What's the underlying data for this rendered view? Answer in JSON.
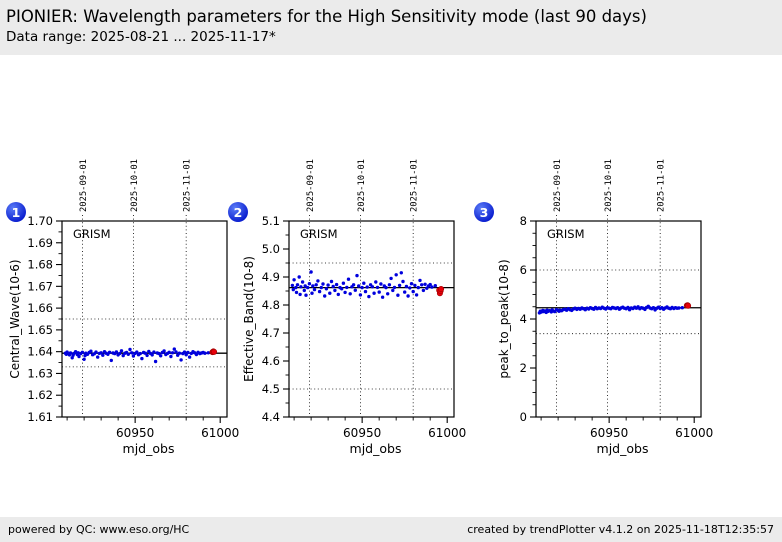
{
  "header": {
    "title": "PIONIER: Wavelength parameters for the High Sensitivity mode (last 90 days)",
    "subtitle": "Data range: 2025-08-21 ... 2025-11-17*"
  },
  "footer": {
    "left": "powered by QC: www.eso.org/HC",
    "right": "created by trendPlotter v4.1.2 on 2025-11-18T12:35:57"
  },
  "colors": {
    "page_background": "#ebebeb",
    "panel_background": "#ffffff",
    "axis_black": "#000000",
    "point_blue": "#0000dd",
    "outlier_red": "#e8000b",
    "outlier_edge": "#a00000",
    "badge_blue": "#0a1ecf",
    "badge_text": "#ffffff"
  },
  "chart_data": {
    "type": "scatter",
    "xlabel": "mjd_obs",
    "xlim": [
      60907,
      61004
    ],
    "xticks": [
      60950,
      61000
    ],
    "xtick_labels": [
      "60950",
      "61000"
    ],
    "xminor_step": 10,
    "grid": "dotted-date-gridlines",
    "date_gridlines": [
      {
        "mjd": 60919,
        "label": "2025-09-01"
      },
      {
        "mjd": 60949,
        "label": "2025-10-01"
      },
      {
        "mjd": 60980,
        "label": "2025-11-01"
      }
    ],
    "x_mjd": [
      60909,
      60909.5,
      60910,
      60911,
      60911.4,
      60912,
      60913,
      60913.5,
      60914,
      60915,
      60916,
      60916.5,
      60917,
      60918,
      60919,
      60920,
      60920.5,
      60921,
      60922,
      60923,
      60924,
      60925,
      60926,
      60927,
      60928,
      60929,
      60930,
      60931,
      60932,
      60933,
      60934,
      60935,
      60936,
      60937,
      60938,
      60939,
      60940,
      60941,
      60942,
      60943,
      60944,
      60945,
      60946,
      60947,
      60948,
      60949,
      60950,
      60951,
      60952,
      60953,
      60954,
      60955,
      60956,
      60957,
      60958,
      60959,
      60960,
      60961,
      60962,
      60963,
      60964,
      60965,
      60966,
      60967,
      60968,
      60969,
      60970,
      60971,
      60972,
      60973,
      60974,
      60975,
      60976,
      60977,
      60978,
      60979,
      60980,
      60981,
      60982,
      60983,
      60984,
      60985,
      60986,
      60987,
      60988,
      60989,
      60990,
      60991,
      60993
    ],
    "panels": [
      {
        "panel_number": "1",
        "annotation": "GRISM",
        "ylabel": "Central_Wave(10-6)",
        "ylim": [
          1.61,
          1.7
        ],
        "yticks": [
          1.61,
          1.62,
          1.63,
          1.64,
          1.65,
          1.66,
          1.67,
          1.68,
          1.69,
          1.7
        ],
        "ytick_labels": [
          "1.61",
          "1.62",
          "1.63",
          "1.64",
          "1.65",
          "1.66",
          "1.67",
          "1.68",
          "1.69",
          "1.70"
        ],
        "yminor_step": 0.005,
        "mean_line": 1.6393,
        "threshold_lines": [
          1.655,
          1.633
        ],
        "values": [
          1.6393,
          1.6388,
          1.6398,
          1.639,
          1.6385,
          1.6394,
          1.6372,
          1.6384,
          1.6392,
          1.64,
          1.6387,
          1.6395,
          1.6378,
          1.6391,
          1.6397,
          1.6365,
          1.6382,
          1.6393,
          1.6388,
          1.6396,
          1.6402,
          1.6386,
          1.639,
          1.6398,
          1.6375,
          1.6392,
          1.6395,
          1.6384,
          1.64,
          1.6393,
          1.6388,
          1.6397,
          1.636,
          1.6394,
          1.6391,
          1.6399,
          1.6385,
          1.6392,
          1.6404,
          1.6382,
          1.6393,
          1.6396,
          1.6388,
          1.641,
          1.6395,
          1.638,
          1.6392,
          1.6398,
          1.6386,
          1.6391,
          1.6368,
          1.6396,
          1.6393,
          1.6383,
          1.6401,
          1.6392,
          1.6385,
          1.6398,
          1.6355,
          1.6394,
          1.6391,
          1.6381,
          1.6396,
          1.6403,
          1.6387,
          1.6392,
          1.6397,
          1.6378,
          1.6395,
          1.6412,
          1.6399,
          1.6384,
          1.6393,
          1.6362,
          1.6391,
          1.6398,
          1.6386,
          1.6396,
          1.6375,
          1.6392,
          1.64,
          1.6395,
          1.6387,
          1.6397,
          1.6391,
          1.6394,
          1.6396,
          1.6393,
          1.6395
        ],
        "outliers": [
          [
            60995.5,
            1.6398
          ],
          [
            60996.0,
            1.6401
          ],
          [
            60996.4,
            1.6399
          ]
        ]
      },
      {
        "panel_number": "2",
        "annotation": "GRISM",
        "ylabel": "Effective_Band(10-8)",
        "ylim": [
          4.4,
          5.1
        ],
        "yticks": [
          4.4,
          4.5,
          4.6,
          4.7,
          4.8,
          4.9,
          5.0,
          5.1
        ],
        "ytick_labels": [
          "4.4",
          "4.5",
          "4.6",
          "4.7",
          "4.8",
          "4.9",
          "5.0",
          "5.1"
        ],
        "yminor_step": 0.05,
        "mean_line": 4.862,
        "threshold_lines": [
          4.95,
          4.5
        ],
        "values": [
          4.87,
          4.855,
          4.89,
          4.862,
          4.845,
          4.872,
          4.9,
          4.838,
          4.865,
          4.882,
          4.852,
          4.868,
          4.835,
          4.862,
          4.876,
          4.918,
          4.842,
          4.868,
          4.855,
          4.872,
          4.886,
          4.848,
          4.862,
          4.875,
          4.832,
          4.858,
          4.871,
          4.842,
          4.884,
          4.866,
          4.852,
          4.873,
          4.838,
          4.862,
          4.858,
          4.878,
          4.845,
          4.863,
          4.892,
          4.84,
          4.865,
          4.872,
          4.853,
          4.905,
          4.868,
          4.836,
          4.862,
          4.878,
          4.848,
          4.864,
          4.83,
          4.872,
          4.865,
          4.842,
          4.882,
          4.863,
          4.846,
          4.875,
          4.828,
          4.868,
          4.862,
          4.84,
          4.872,
          4.895,
          4.852,
          4.863,
          4.908,
          4.835,
          4.87,
          4.915,
          4.884,
          4.846,
          4.866,
          4.832,
          4.861,
          4.876,
          4.848,
          4.87,
          4.836,
          4.862,
          4.888,
          4.872,
          4.852,
          4.874,
          4.86,
          4.868,
          4.873,
          4.864,
          4.869
        ],
        "outliers": [
          [
            60995.3,
            4.853
          ],
          [
            60995.7,
            4.842
          ],
          [
            60996.1,
            4.85
          ],
          [
            60996.4,
            4.857
          ]
        ]
      },
      {
        "panel_number": "3",
        "annotation": "GRISM",
        "ylabel": "peak_to_peak(10-8)",
        "ylim": [
          0,
          8
        ],
        "yticks": [
          0,
          2,
          4,
          6,
          8
        ],
        "ytick_labels": [
          "0",
          "2",
          "4",
          "6",
          "8"
        ],
        "yminor_step": 0.5,
        "mean_line": 4.46,
        "threshold_lines": [
          6.0,
          3.4
        ],
        "values": [
          4.25,
          4.32,
          4.28,
          4.35,
          4.3,
          4.33,
          4.27,
          4.36,
          4.31,
          4.34,
          4.29,
          4.37,
          4.33,
          4.3,
          4.38,
          4.35,
          4.32,
          4.36,
          4.34,
          4.38,
          4.4,
          4.36,
          4.42,
          4.38,
          4.35,
          4.41,
          4.44,
          4.39,
          4.43,
          4.4,
          4.45,
          4.42,
          4.38,
          4.44,
          4.41,
          4.46,
          4.43,
          4.4,
          4.47,
          4.42,
          4.45,
          4.43,
          4.48,
          4.44,
          4.41,
          4.46,
          4.44,
          4.42,
          4.47,
          4.45,
          4.43,
          4.46,
          4.4,
          4.45,
          4.48,
          4.44,
          4.42,
          4.47,
          4.38,
          4.45,
          4.43,
          4.48,
          4.44,
          4.5,
          4.42,
          4.46,
          4.44,
          4.39,
          4.47,
          4.52,
          4.45,
          4.42,
          4.46,
          4.37,
          4.44,
          4.48,
          4.43,
          4.46,
          4.4,
          4.45,
          4.49,
          4.44,
          4.42,
          4.47,
          4.43,
          4.46,
          4.44,
          4.45,
          4.46
        ],
        "outliers": [
          [
            60995.7,
            4.55
          ],
          [
            60996.1,
            4.56
          ],
          [
            60996.4,
            4.54
          ]
        ]
      }
    ]
  }
}
